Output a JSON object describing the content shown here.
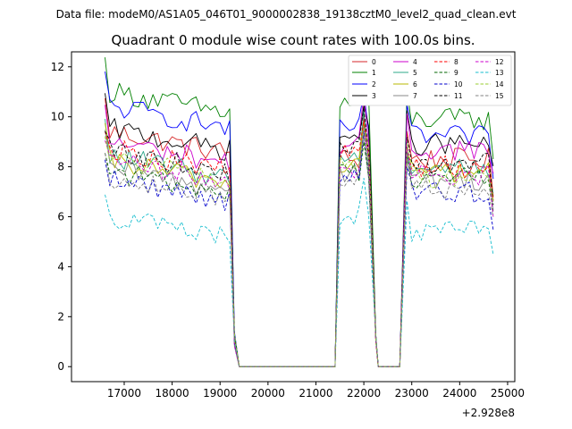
{
  "chart_data": {
    "type": "line",
    "suptitle": "Data file: modeM0/AS1A05_046T01_9000002838_19138cztM0_level2_quad_clean.evt",
    "title": "Quadrant 0 module wise count rates with 100.0s bins.",
    "xlabel": "",
    "ylabel": "",
    "x_offset_label": "+2.928e8",
    "xlim": [
      15900,
      25150
    ],
    "ylim": [
      -0.6,
      12.6
    ],
    "xticks": [
      17000,
      18000,
      19000,
      20000,
      21000,
      22000,
      23000,
      24000,
      25000
    ],
    "yticks": [
      0,
      2,
      4,
      6,
      8,
      10,
      12
    ],
    "legend_location": "top-right",
    "gaps": [
      {
        "x0": 19300,
        "x1": 21400
      },
      {
        "x0": 22250,
        "x1": 22750
      }
    ],
    "segments": [
      {
        "start": 16600,
        "end": 19200,
        "dip": 19300
      },
      {
        "start": 21500,
        "end": 22100,
        "dip": 22250
      },
      {
        "start": 22900,
        "end": 24700
      }
    ],
    "series": [
      {
        "name": "0",
        "color": "#d62728",
        "dash": "solid",
        "level": 9.0,
        "seg2": 8.3,
        "seg3": 8.3
      },
      {
        "name": "1",
        "color": "#008000",
        "dash": "solid",
        "level": 10.6,
        "seg2": 10.5,
        "seg3": 9.9
      },
      {
        "name": "2",
        "color": "#0000ff",
        "dash": "solid",
        "level": 10.0,
        "seg2": 9.5,
        "seg3": 9.2
      },
      {
        "name": "3",
        "color": "#000000",
        "dash": "solid",
        "level": 9.1,
        "seg2": 9.2,
        "seg3": 8.9
      },
      {
        "name": "4",
        "color": "#cc00cc",
        "dash": "solid",
        "level": 8.6,
        "seg2": 8.9,
        "seg3": 8.7
      },
      {
        "name": "5",
        "color": "#2ca88a",
        "dash": "solid",
        "level": 8.0,
        "seg2": 8.4,
        "seg3": 8.0
      },
      {
        "name": "6",
        "color": "#b8b800",
        "dash": "solid",
        "level": 7.8,
        "seg2": 8.1,
        "seg3": 7.8
      },
      {
        "name": "7",
        "color": "#888888",
        "dash": "solid",
        "level": 7.5,
        "seg2": 7.8,
        "seg3": 7.5
      },
      {
        "name": "8",
        "color": "#ff0000",
        "dash": "dashed",
        "level": 8.3,
        "seg2": 8.5,
        "seg3": 8.0
      },
      {
        "name": "9",
        "color": "#006400",
        "dash": "dashed",
        "level": 7.4,
        "seg2": 7.8,
        "seg3": 7.6
      },
      {
        "name": "10",
        "color": "#0000cc",
        "dash": "dashed",
        "level": 7.1,
        "seg2": 7.5,
        "seg3": 7.0
      },
      {
        "name": "11",
        "color": "#000000",
        "dash": "dashed",
        "level": 8.2,
        "seg2": 8.6,
        "seg3": 8.1
      },
      {
        "name": "12",
        "color": "#cc00cc",
        "dash": "dashed",
        "level": 7.8,
        "seg2": 8.0,
        "seg3": 7.7
      },
      {
        "name": "13",
        "color": "#17becf",
        "dash": "dashed",
        "level": 5.6,
        "seg2": 6.1,
        "seg3": 5.4
      },
      {
        "name": "14",
        "color": "#9acd32",
        "dash": "dashed",
        "level": 7.9,
        "seg2": 8.3,
        "seg3": 7.6
      },
      {
        "name": "15",
        "color": "#808080",
        "dash": "dashed",
        "level": 7.2,
        "seg2": 7.6,
        "seg3": 7.1
      }
    ]
  }
}
